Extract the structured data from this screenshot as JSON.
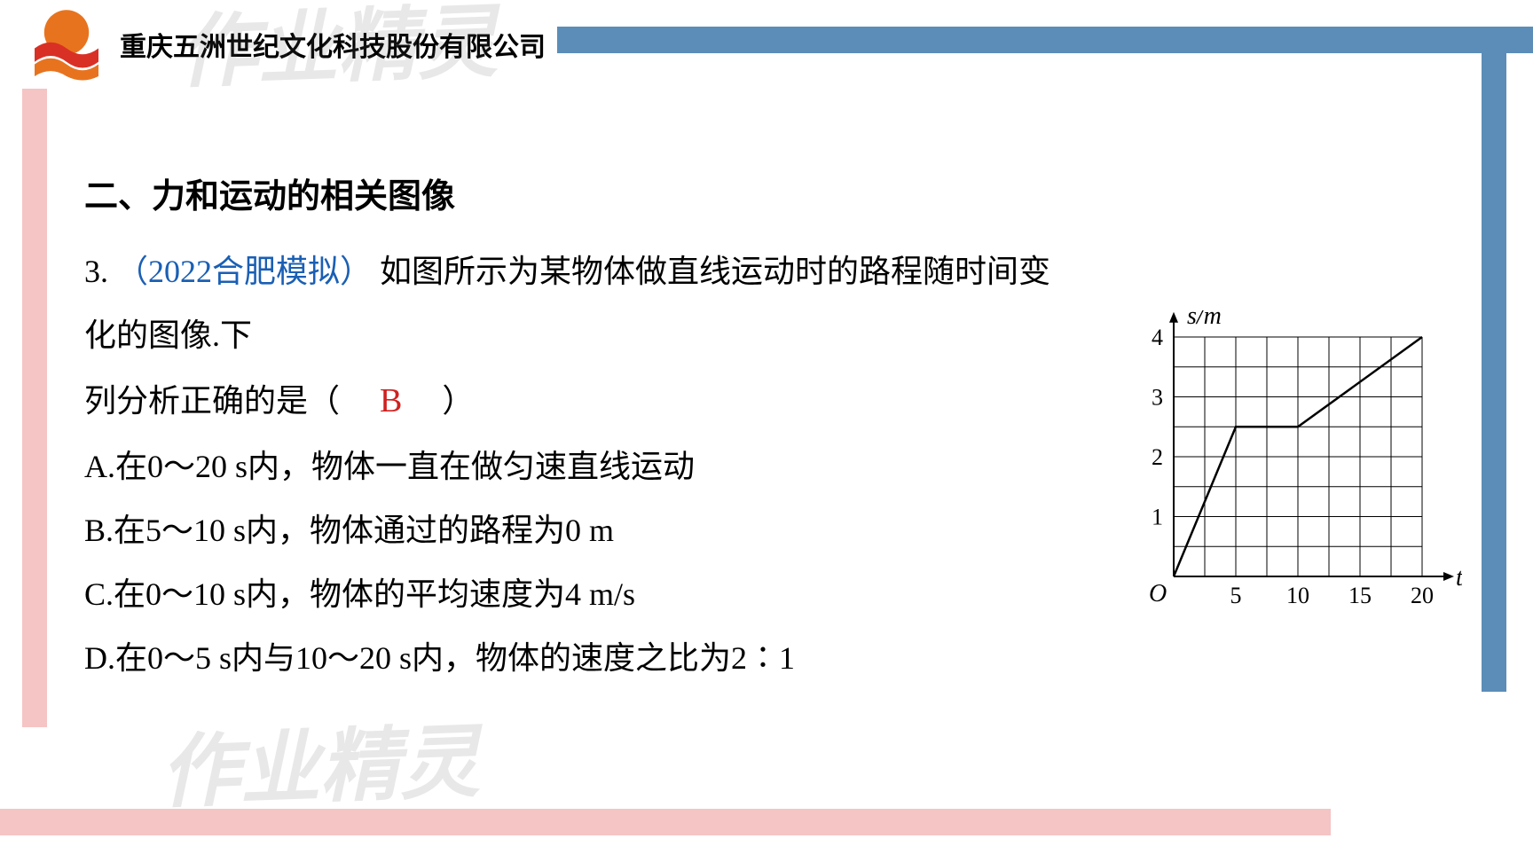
{
  "header": {
    "company_name": "重庆五洲世纪文化科技股份有限公司"
  },
  "watermark": {
    "top_text": "作业精灵",
    "bottom_text": "作业精灵"
  },
  "content": {
    "section_title": "二、力和运动的相关图像",
    "question_number": "3.",
    "question_source": "（2022合肥模拟）",
    "question_intro": "如图所示为某物体做直线运动时的路程随时间变化的图像.下",
    "question_line2_prefix": "列分析正确的是（",
    "answer": "B",
    "question_line2_suffix": "）",
    "options": {
      "A": "A.在0～20 s内，物体一直在做匀速直线运动",
      "B": "B.在5～10 s内，物体通过的路程为0 m",
      "C": "C.在0～10 s内，物体的平均速度为4 m/s",
      "D": "D.在0～5 s内与10～20 s内，物体的速度之比为2∶1"
    }
  },
  "graph": {
    "type": "line",
    "y_label": "s/m",
    "x_label": "t/s",
    "origin_label": "O",
    "x_ticks": [
      5,
      10,
      15,
      20
    ],
    "y_ticks": [
      1,
      2,
      3,
      4
    ],
    "x_range": [
      0,
      22
    ],
    "y_range": [
      0,
      4.3
    ],
    "grid_spacing_x": 2.5,
    "grid_spacing_y": 0.5,
    "data_points": [
      [
        0,
        0
      ],
      [
        5,
        2.5
      ],
      [
        10,
        2.5
      ],
      [
        20,
        4
      ]
    ],
    "colors": {
      "axis": "#000000",
      "grid": "#000000",
      "line": "#000000",
      "background": "#ffffff"
    },
    "line_width": 2.5,
    "grid_width": 1,
    "axis_width": 2,
    "label_fontsize": 28,
    "tick_fontsize": 26,
    "font_family": "Times New Roman"
  },
  "decorations": {
    "top_bar_color": "#5b8db8",
    "left_bar_color": "#f5c4c4",
    "right_bar_color": "#5b8db8",
    "bottom_bar_color": "#f5c4c4"
  },
  "logo": {
    "primary_color": "#e8731e",
    "secondary_color": "#d93025"
  }
}
